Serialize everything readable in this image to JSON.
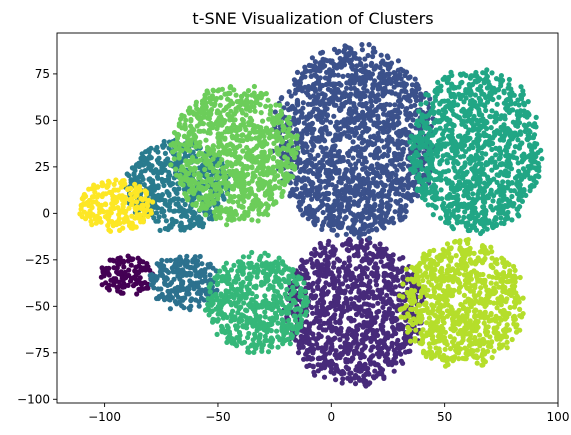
{
  "chart_data": {
    "type": "scatter",
    "title": "t-SNE Visualization of Clusters",
    "xlabel": "",
    "ylabel": "",
    "xlim": [
      -121,
      100
    ],
    "ylim": [
      -102,
      97
    ],
    "xticks": [
      -100,
      -50,
      0,
      50,
      100
    ],
    "yticks": [
      -100,
      -75,
      -50,
      -25,
      0,
      25,
      50,
      75
    ],
    "grid": false,
    "legend": "none",
    "colormap": "viridis",
    "series": [
      {
        "color": "#440154",
        "approx_extent": {
          "x": [
            -103,
            -78
          ],
          "y": [
            -44,
            -23
          ]
        }
      },
      {
        "color": "#472a7a",
        "approx_extent": {
          "x": [
            -20,
            40
          ],
          "y": [
            -92,
            -13
          ]
        }
      },
      {
        "color": "#3b518b",
        "approx_extent": {
          "x": [
            -25,
            45
          ],
          "y": [
            -12,
            90
          ]
        }
      },
      {
        "color": "#2c718e",
        "approx_extent": {
          "x": [
            -80,
            -50
          ],
          "y": [
            -52,
            -22
          ]
        }
      },
      {
        "color": "#297b8e",
        "approx_extent": {
          "x": [
            -90,
            -45
          ],
          "y": [
            -10,
            40
          ]
        }
      },
      {
        "color": "#21a685",
        "approx_extent": {
          "x": [
            35,
            92
          ],
          "y": [
            -10,
            78
          ]
        }
      },
      {
        "color": "#35b779",
        "approx_extent": {
          "x": [
            -55,
            -10
          ],
          "y": [
            -75,
            -22
          ]
        }
      },
      {
        "color": "#6ccd5a",
        "approx_extent": {
          "x": [
            -70,
            -15
          ],
          "y": [
            -5,
            68
          ]
        }
      },
      {
        "color": "#b5de2b",
        "approx_extent": {
          "x": [
            30,
            85
          ],
          "y": [
            -82,
            -15
          ]
        }
      },
      {
        "color": "#fde725",
        "approx_extent": {
          "x": [
            -112,
            -78
          ],
          "y": [
            -10,
            18
          ]
        }
      }
    ]
  }
}
